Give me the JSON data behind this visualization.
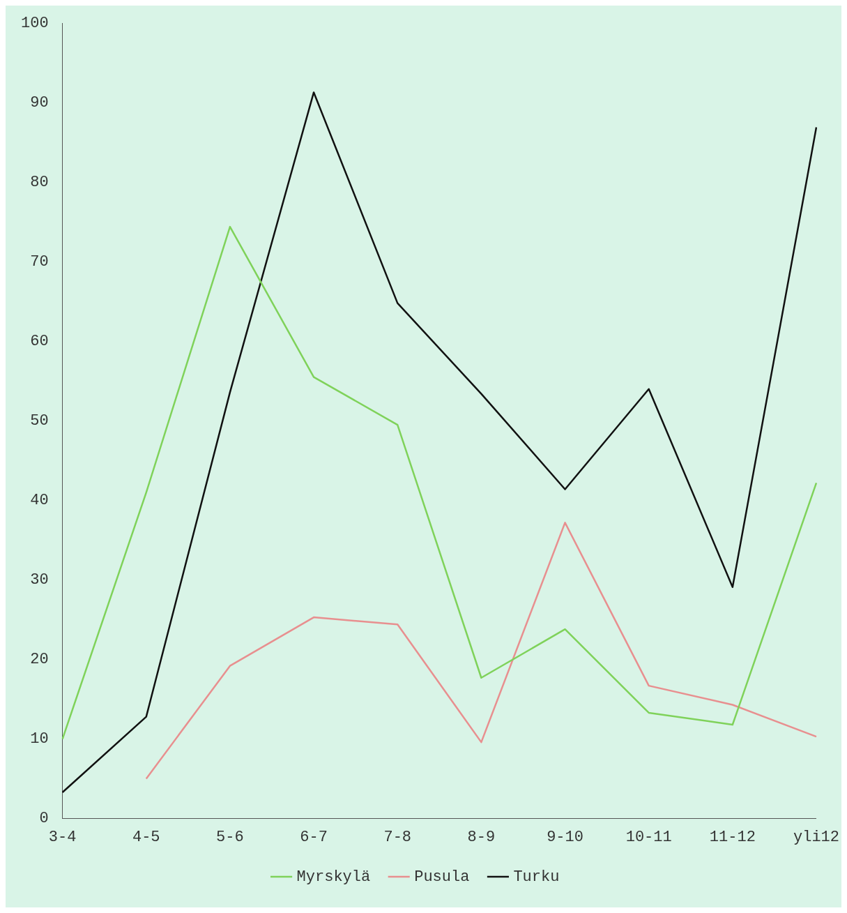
{
  "chart_data": {
    "type": "line",
    "categories": [
      "3-4",
      "4-5",
      "5-6",
      "6-7",
      "7-8",
      "8-9",
      "9-10",
      "10-11",
      "11-12",
      "yli12"
    ],
    "series": [
      {
        "name": "Myrskylä",
        "color": "#7fd25a",
        "values": [
          10,
          41,
          74.4,
          55.5,
          49.5,
          17.7,
          23.8,
          13.3,
          11.8,
          42.2
        ]
      },
      {
        "name": "Pusula",
        "color": "#e88f8f",
        "values": [
          null,
          5,
          19.2,
          25.3,
          24.4,
          9.6,
          37.2,
          16.7,
          14.3,
          10.3
        ]
      },
      {
        "name": "Turku",
        "color": "#111111",
        "values": [
          3.3,
          12.8,
          53.6,
          91.3,
          64.8,
          53.4,
          41.4,
          54,
          29.1,
          86.9
        ]
      }
    ],
    "ylim": [
      0,
      100
    ],
    "yticks": [
      0,
      10,
      20,
      30,
      40,
      50,
      60,
      70,
      80,
      90,
      100
    ],
    "grid": false,
    "legend": "bottom",
    "marker": "none",
    "line_style": "solid"
  }
}
